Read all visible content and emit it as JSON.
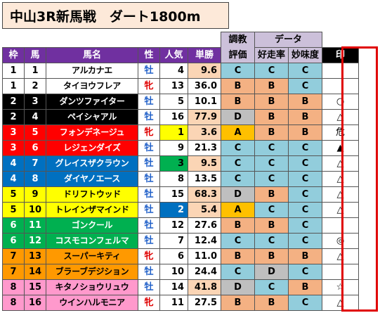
{
  "title": "中山3R新馬戦　ダート1800m",
  "header": {
    "group_chokyo": "調教",
    "group_chokyo2": "評価",
    "group_data": "データ",
    "waku": "枠",
    "uma": "馬",
    "bamei": "馬名",
    "sei": "性",
    "ninki": "人気",
    "tansho": "単勝",
    "koso": "好走率",
    "myomi": "妙味度",
    "shirushi": "印"
  },
  "colors": {
    "header_purple": "#7030a0",
    "header_lavender": "#ccc0da",
    "grade_a": "#ffc000",
    "grade_b": "#f4b183",
    "grade_c": "#92cddc",
    "grade_d": "#bfbfbf",
    "odds_tan": "#fbd5b5",
    "mark_border": "#e00000"
  },
  "rows": [
    {
      "waku": "1",
      "uma": "1",
      "name": "アルカナエ",
      "sex": "牡",
      "ninki": "4",
      "odds": "9.6",
      "chokyo": "C",
      "koso": "C",
      "myomi": "C",
      "mark": ""
    },
    {
      "waku": "1",
      "uma": "2",
      "name": "タイヨウフレア",
      "sex": "牝",
      "ninki": "13",
      "odds": "36.0",
      "chokyo": "B",
      "koso": "B",
      "myomi": "C",
      "mark": ""
    },
    {
      "waku": "2",
      "uma": "3",
      "name": "ダンツファイター",
      "sex": "牡",
      "ninki": "5",
      "odds": "10.1",
      "chokyo": "B",
      "koso": "B",
      "myomi": "B",
      "mark": "○"
    },
    {
      "waku": "2",
      "uma": "4",
      "name": "ペイシャアル",
      "sex": "牡",
      "ninki": "16",
      "odds": "77.9",
      "chokyo": "D",
      "koso": "B",
      "myomi": "B",
      "mark": "△"
    },
    {
      "waku": "3",
      "uma": "5",
      "name": "フォンデネージュ",
      "sex": "牝",
      "ninki": "1",
      "odds": "3.6",
      "chokyo": "A",
      "koso": "B",
      "myomi": "B",
      "mark": "危"
    },
    {
      "waku": "3",
      "uma": "6",
      "name": "レジェンダイズ",
      "sex": "牡",
      "ninki": "9",
      "odds": "21.3",
      "chokyo": "C",
      "koso": "C",
      "myomi": "C",
      "mark": "▲"
    },
    {
      "waku": "4",
      "uma": "7",
      "name": "グレイスザクラウン",
      "sex": "牡",
      "ninki": "3",
      "odds": "9.5",
      "chokyo": "C",
      "koso": "C",
      "myomi": "C",
      "mark": "△"
    },
    {
      "waku": "4",
      "uma": "8",
      "name": "ダイヤノエース",
      "sex": "牡",
      "ninki": "8",
      "odds": "13.5",
      "chokyo": "C",
      "koso": "C",
      "myomi": "C",
      "mark": "△"
    },
    {
      "waku": "5",
      "uma": "9",
      "name": "ドリフトウッド",
      "sex": "牡",
      "ninki": "15",
      "odds": "68.3",
      "chokyo": "D",
      "koso": "B",
      "myomi": "C",
      "mark": "△"
    },
    {
      "waku": "5",
      "uma": "10",
      "name": "トレインザマインド",
      "sex": "牡",
      "ninki": "2",
      "odds": "5.4",
      "chokyo": "A",
      "koso": "C",
      "myomi": "C",
      "mark": "△"
    },
    {
      "waku": "6",
      "uma": "11",
      "name": "ゴンクール",
      "sex": "牡",
      "ninki": "12",
      "odds": "27.6",
      "chokyo": "B",
      "koso": "B",
      "myomi": "C",
      "mark": ""
    },
    {
      "waku": "6",
      "uma": "12",
      "name": "コスモコンフェルマ",
      "sex": "牡",
      "ninki": "7",
      "odds": "12.4",
      "chokyo": "C",
      "koso": "C",
      "myomi": "C",
      "mark": "◎"
    },
    {
      "waku": "7",
      "uma": "13",
      "name": "スーパーキティ",
      "sex": "牝",
      "ninki": "6",
      "odds": "11.0",
      "chokyo": "B",
      "koso": "B",
      "myomi": "B",
      "mark": "△"
    },
    {
      "waku": "7",
      "uma": "14",
      "name": "ブラーブデジション",
      "sex": "牡",
      "ninki": "10",
      "odds": "24.4",
      "chokyo": "C",
      "koso": "D",
      "myomi": "C",
      "mark": ""
    },
    {
      "waku": "8",
      "uma": "15",
      "name": "キタノショウリュウ",
      "sex": "牡",
      "ninki": "14",
      "odds": "41.8",
      "chokyo": "D",
      "koso": "C",
      "myomi": "B",
      "mark": "☆"
    },
    {
      "waku": "8",
      "uma": "16",
      "name": "ウインハルモニア",
      "sex": "牝",
      "ninki": "11",
      "odds": "27.5",
      "chokyo": "B",
      "koso": "B",
      "myomi": "C",
      "mark": "△"
    }
  ]
}
